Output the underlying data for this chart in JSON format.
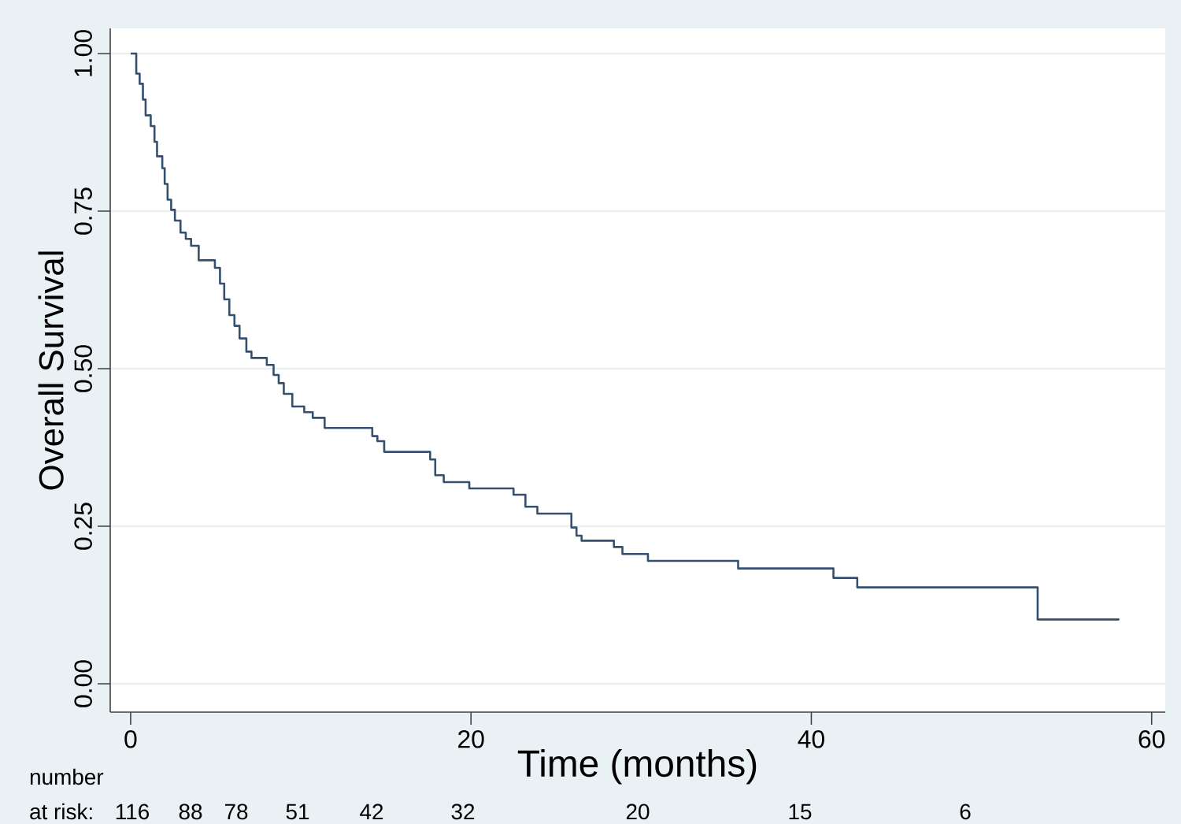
{
  "chart_data": {
    "type": "step",
    "xlabel": "Time (months)",
    "ylabel": "Overall Survival",
    "x": [
      0,
      0.33,
      0.53,
      0.72,
      0.88,
      1.18,
      1.4,
      1.55,
      1.86,
      2.0,
      2.17,
      2.38,
      2.6,
      2.93,
      3.24,
      3.55,
      4.0,
      4.95,
      5.25,
      5.5,
      5.8,
      6.1,
      6.4,
      6.8,
      7.1,
      8.0,
      8.4,
      8.7,
      9.0,
      9.5,
      10.2,
      10.7,
      11.4,
      14.2,
      14.5,
      14.9,
      17.6,
      17.9,
      18.4,
      19.9,
      22.5,
      23.2,
      23.9,
      25.9,
      26.2,
      26.5,
      28.4,
      28.9,
      30.4,
      35.7,
      41.3,
      42.7,
      53.3,
      58.1
    ],
    "series": [
      {
        "color": "#34506e",
        "values": [
          1.0,
          0.968,
          0.952,
          0.927,
          0.902,
          0.885,
          0.86,
          0.837,
          0.818,
          0.793,
          0.768,
          0.752,
          0.735,
          0.716,
          0.706,
          0.695,
          0.672,
          0.66,
          0.635,
          0.61,
          0.585,
          0.568,
          0.548,
          0.527,
          0.517,
          0.506,
          0.49,
          0.477,
          0.46,
          0.44,
          0.431,
          0.422,
          0.406,
          0.393,
          0.385,
          0.368,
          0.356,
          0.331,
          0.32,
          0.31,
          0.3,
          0.281,
          0.27,
          0.248,
          0.235,
          0.227,
          0.217,
          0.206,
          0.195,
          0.183,
          0.168,
          0.153,
          0.102,
          0.102
        ]
      }
    ],
    "xlim": [
      -1.2,
      60.8
    ],
    "ylim": [
      -0.045,
      1.04
    ],
    "xticks": [
      0,
      20,
      40,
      60
    ],
    "yticks": [
      {
        "value": 0,
        "label": "0.00"
      },
      {
        "value": 0.25,
        "label": "0.25"
      },
      {
        "value": 0.5,
        "label": "0.50"
      },
      {
        "value": 0.75,
        "label": "0.75"
      },
      {
        "value": 1,
        "label": "1.00"
      }
    ],
    "grid": "y",
    "marker": "none",
    "line_style": "solid",
    "annotations": [
      "number",
      "at risk:",
      "116",
      "88",
      "78",
      "51",
      "42",
      "32",
      "20",
      "15",
      "6"
    ]
  }
}
